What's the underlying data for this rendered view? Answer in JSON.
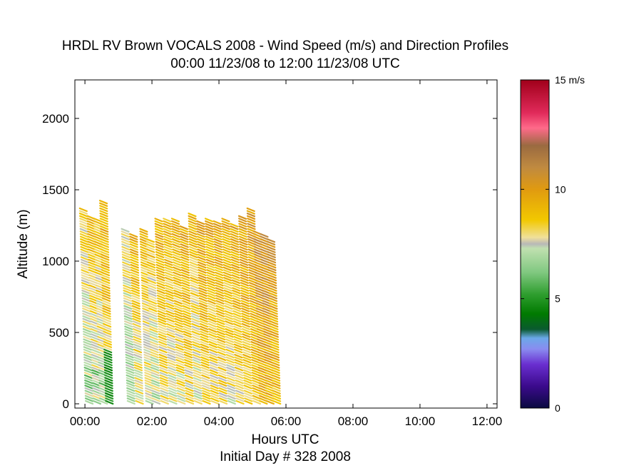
{
  "chart_data": {
    "type": "scatter",
    "title": "HRDL RV Brown VOCALS 2008 - Wind Speed (m/s) and Direction Profiles",
    "subtitle": "00:00 11/23/08 to 12:00 11/23/08  UTC",
    "xlabel": "Hours UTC",
    "xlabel2": "Initial Day # 328  2008",
    "ylabel": "Altitude (m)",
    "xlim": [
      -0.3,
      12.3
    ],
    "ylim": [
      -30,
      2270
    ],
    "xticks": [
      {
        "v": 0,
        "label": "00:00"
      },
      {
        "v": 2,
        "label": "02:00"
      },
      {
        "v": 4,
        "label": "04:00"
      },
      {
        "v": 6,
        "label": "06:00"
      },
      {
        "v": 8,
        "label": "08:00"
      },
      {
        "v": 10,
        "label": "10:00"
      },
      {
        "v": 12,
        "label": "12:00"
      }
    ],
    "yticks": [
      {
        "v": 0,
        "label": "0"
      },
      {
        "v": 500,
        "label": "500"
      },
      {
        "v": 1000,
        "label": "1000"
      },
      {
        "v": 1500,
        "label": "1500"
      },
      {
        "v": 2000,
        "label": "2000"
      }
    ],
    "colorbar": {
      "range": [
        0,
        15
      ],
      "unit": "m/s",
      "ticks": [
        {
          "v": 15,
          "label": "15 m/s"
        },
        {
          "v": 10,
          "label": "10"
        },
        {
          "v": 5,
          "label": "5"
        },
        {
          "v": 0,
          "label": "0"
        }
      ],
      "stops": [
        {
          "v": 0,
          "color": "#0a0a40"
        },
        {
          "v": 1,
          "color": "#3b0a8c"
        },
        {
          "v": 2,
          "color": "#6a2fd0"
        },
        {
          "v": 2.7,
          "color": "#8a8cf0"
        },
        {
          "v": 3.2,
          "color": "#6aa8e8"
        },
        {
          "v": 3.6,
          "color": "#0a5a30"
        },
        {
          "v": 4.3,
          "color": "#007a00"
        },
        {
          "v": 5.2,
          "color": "#2f9e2f"
        },
        {
          "v": 6.2,
          "color": "#80c880"
        },
        {
          "v": 7.3,
          "color": "#c0e0b0"
        },
        {
          "v": 7.5,
          "color": "#b8b8b8"
        },
        {
          "v": 7.8,
          "color": "#f0e09a"
        },
        {
          "v": 8.6,
          "color": "#f2c800"
        },
        {
          "v": 10,
          "color": "#e09a10"
        },
        {
          "v": 11,
          "color": "#c08a40"
        },
        {
          "v": 12,
          "color": "#9a6a40"
        },
        {
          "v": 12.8,
          "color": "#ff6a8a"
        },
        {
          "v": 13.5,
          "color": "#e02a5a"
        },
        {
          "v": 15,
          "color": "#a0001a"
        }
      ]
    },
    "profiles": [
      {
        "t": -0.05,
        "top": 1370,
        "speed": 8.4
      },
      {
        "t": 0.18,
        "top": 1320,
        "speed": 9.0
      },
      {
        "t": 0.38,
        "top": 1300,
        "speed": 8.8
      },
      {
        "t": 0.55,
        "top": 1430,
        "speed": 9.5
      },
      {
        "t": 1.2,
        "top": 1230,
        "speed": 8.2
      },
      {
        "t": 1.45,
        "top": 1180,
        "speed": 9.2
      },
      {
        "t": 1.75,
        "top": 1230,
        "speed": 9.0
      },
      {
        "t": 1.95,
        "top": 1160,
        "speed": 8.7
      },
      {
        "t": 2.2,
        "top": 1300,
        "speed": 9.4
      },
      {
        "t": 2.45,
        "top": 1300,
        "speed": 9.1
      },
      {
        "t": 2.7,
        "top": 1290,
        "speed": 9.3
      },
      {
        "t": 2.95,
        "top": 1250,
        "speed": 9.6
      },
      {
        "t": 3.2,
        "top": 1330,
        "speed": 9.0
      },
      {
        "t": 3.45,
        "top": 1270,
        "speed": 9.8
      },
      {
        "t": 3.7,
        "top": 1300,
        "speed": 9.5
      },
      {
        "t": 3.95,
        "top": 1280,
        "speed": 9.7
      },
      {
        "t": 4.2,
        "top": 1290,
        "speed": 9.3
      },
      {
        "t": 4.45,
        "top": 1260,
        "speed": 9.6
      },
      {
        "t": 4.7,
        "top": 1320,
        "speed": 9.9
      },
      {
        "t": 4.95,
        "top": 1370,
        "speed": 10.2
      },
      {
        "t": 5.15,
        "top": 1210,
        "speed": 10.6
      },
      {
        "t": 5.35,
        "top": 1180,
        "speed": 10.8
      },
      {
        "t": 5.55,
        "top": 1160,
        "speed": 10.4
      }
    ]
  }
}
